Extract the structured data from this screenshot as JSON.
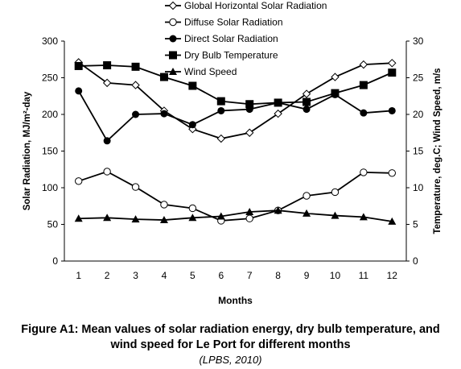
{
  "chart_data": {
    "type": "line",
    "x": [
      1,
      2,
      3,
      4,
      5,
      6,
      7,
      8,
      9,
      10,
      11,
      12
    ],
    "xlabel": "Months",
    "ylabel_left": "Solar Radiation, MJ/m²-day",
    "ylabel_right": "Temperature, deg.C; Wind Speed, m/s",
    "ylim_left": [
      0,
      300
    ],
    "ylim_right": [
      0,
      30
    ],
    "yticks_left": [
      0,
      50,
      100,
      150,
      200,
      250,
      300
    ],
    "yticks_right": [
      0,
      5,
      10,
      15,
      20,
      25,
      30
    ],
    "grid": false,
    "legend_position": "top",
    "series": [
      {
        "name": "Global Horizontal Solar Radiation",
        "axis": "left",
        "marker": "diamond-open",
        "values": [
          271,
          243,
          240,
          205,
          180,
          167,
          175,
          201,
          228,
          251,
          268,
          270
        ]
      },
      {
        "name": "Diffuse Solar Radiation",
        "axis": "left",
        "marker": "circle-open",
        "values": [
          109,
          122,
          101,
          77,
          72,
          55,
          58,
          69,
          89,
          94,
          121,
          120
        ]
      },
      {
        "name": "Direct Solar Radiation",
        "axis": "left",
        "marker": "circle-filled",
        "values": [
          232,
          164,
          200,
          201,
          186,
          205,
          207,
          216,
          207,
          227,
          202,
          205
        ]
      },
      {
        "name": "Dry Bulb Temperature",
        "axis": "right",
        "marker": "square-filled",
        "values": [
          26.6,
          26.7,
          26.5,
          25.1,
          23.9,
          21.8,
          21.4,
          21.6,
          21.7,
          22.9,
          24.0,
          25.7
        ]
      },
      {
        "name": "Wind Speed",
        "axis": "right",
        "marker": "triangle-filled",
        "values": [
          5.8,
          5.9,
          5.7,
          5.6,
          5.9,
          6.1,
          6.7,
          6.9,
          6.5,
          6.2,
          6.0,
          5.4
        ]
      }
    ]
  },
  "caption": {
    "title_line1": "Figure A1: Mean values of solar radiation energy, dry bulb temperature, and",
    "title_line2": "wind speed for Le Port for different months",
    "source": "(LPBS, 2010)"
  }
}
